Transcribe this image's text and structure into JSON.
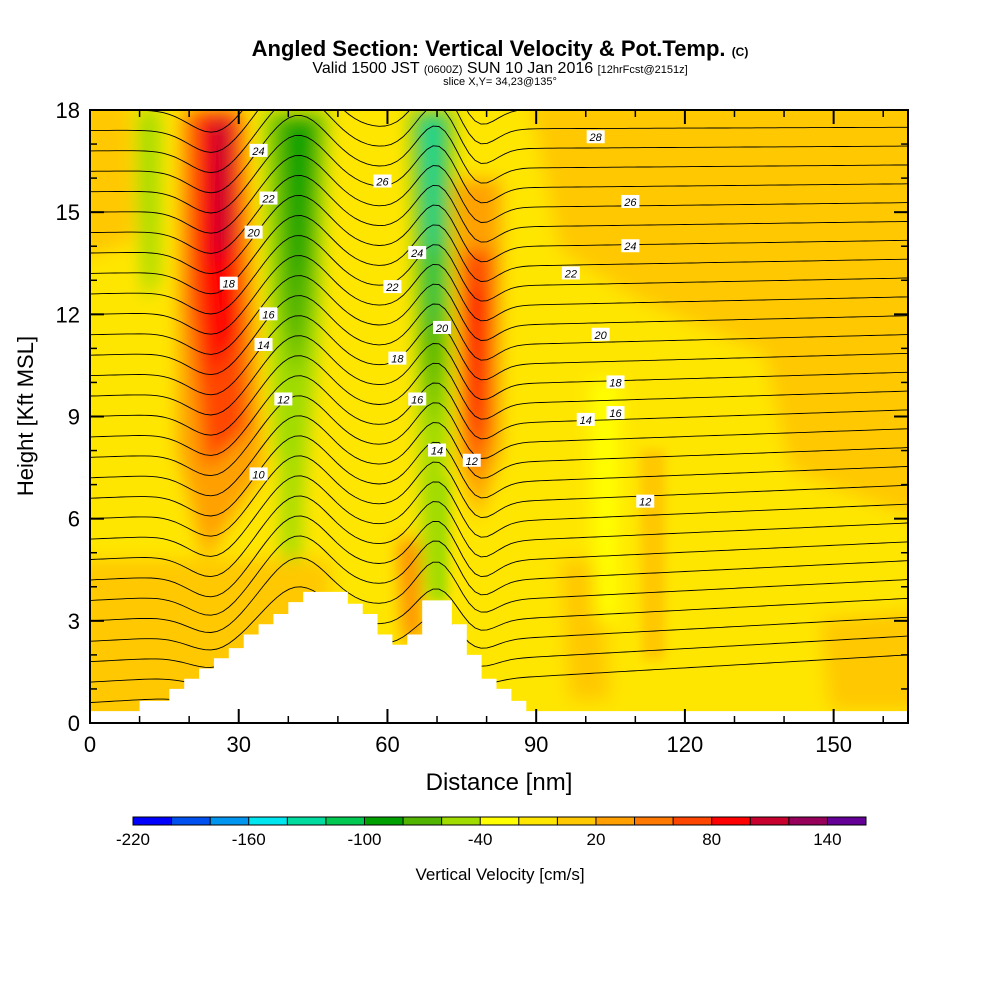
{
  "header": {
    "title": "Angled Section: Vertical Velocity & Pot.Temp.",
    "title_unit": "(C)",
    "subtitle_a": "Valid 1500 JST",
    "subtitle_b": "(0600Z)",
    "subtitle_c": "SUN 10 Jan 2016",
    "subtitle_d": "[12hrFcst@2151z]",
    "slice": "slice X,Y= 34,23@135°"
  },
  "chart_data": {
    "type": "heatmap",
    "xlabel": "Distance [nm]",
    "ylabel": "Height [Kft MSL]",
    "xlim": [
      0,
      165
    ],
    "ylim": [
      0,
      18
    ],
    "x_ticks": [
      0,
      30,
      60,
      90,
      120,
      150
    ],
    "y_ticks": [
      0,
      3,
      6,
      9,
      12,
      15,
      18
    ],
    "colorbar": {
      "label": "Vertical Velocity [cm/s]",
      "tick_labels": [
        "-220",
        "-160",
        "-100",
        "-40",
        "20",
        "80",
        "140"
      ],
      "tick_values": [
        -220,
        -160,
        -100,
        -40,
        20,
        80,
        140
      ],
      "range": [
        -220,
        160
      ],
      "step": 20,
      "colors": [
        "#0000ff",
        "#0050f0",
        "#0096f0",
        "#00e6f0",
        "#00dca0",
        "#00c850",
        "#00a000",
        "#50b400",
        "#a0dc00",
        "#ffff00",
        "#ffe600",
        "#ffc800",
        "#ffa000",
        "#ff7800",
        "#ff4600",
        "#ff0000",
        "#c8002d",
        "#96005a",
        "#640096"
      ]
    },
    "terrain": [
      [
        0,
        0.35
      ],
      [
        10,
        0.35
      ],
      [
        10,
        0.65
      ],
      [
        16,
        0.65
      ],
      [
        16,
        1.0
      ],
      [
        19,
        1.0
      ],
      [
        19,
        1.3
      ],
      [
        22,
        1.3
      ],
      [
        22,
        1.6
      ],
      [
        25,
        1.6
      ],
      [
        25,
        1.9
      ],
      [
        28,
        1.9
      ],
      [
        28,
        2.2
      ],
      [
        31,
        2.2
      ],
      [
        31,
        2.6
      ],
      [
        34,
        2.6
      ],
      [
        34,
        2.9
      ],
      [
        37,
        2.9
      ],
      [
        37,
        3.2
      ],
      [
        40,
        3.2
      ],
      [
        40,
        3.55
      ],
      [
        43,
        3.55
      ],
      [
        43,
        3.85
      ],
      [
        52,
        3.85
      ],
      [
        52,
        3.5
      ],
      [
        55,
        3.5
      ],
      [
        55,
        3.2
      ],
      [
        58,
        3.2
      ],
      [
        58,
        2.6
      ],
      [
        61,
        2.6
      ],
      [
        61,
        2.3
      ],
      [
        64,
        2.3
      ],
      [
        64,
        2.6
      ],
      [
        67,
        2.6
      ],
      [
        67,
        3.6
      ],
      [
        73,
        3.6
      ],
      [
        73,
        2.9
      ],
      [
        76,
        2.9
      ],
      [
        76,
        2.0
      ],
      [
        79,
        2.0
      ],
      [
        79,
        1.3
      ],
      [
        82,
        1.3
      ],
      [
        82,
        1.0
      ],
      [
        85,
        1.0
      ],
      [
        85,
        0.65
      ],
      [
        88,
        0.65
      ],
      [
        88,
        0.35
      ],
      [
        165,
        0.35
      ]
    ],
    "isotherm_labels": [
      {
        "text": "24",
        "x": 34,
        "y": 16.8
      },
      {
        "text": "22",
        "x": 36,
        "y": 15.4
      },
      {
        "text": "20",
        "x": 33,
        "y": 14.4
      },
      {
        "text": "18",
        "x": 28,
        "y": 12.9
      },
      {
        "text": "16",
        "x": 36,
        "y": 12.0
      },
      {
        "text": "14",
        "x": 35,
        "y": 11.1
      },
      {
        "text": "12",
        "x": 39,
        "y": 9.5
      },
      {
        "text": "10",
        "x": 34,
        "y": 7.3
      },
      {
        "text": "26",
        "x": 59,
        "y": 15.9
      },
      {
        "text": "24",
        "x": 66,
        "y": 13.8
      },
      {
        "text": "22",
        "x": 61,
        "y": 12.8
      },
      {
        "text": "18",
        "x": 62,
        "y": 10.7
      },
      {
        "text": "16",
        "x": 66,
        "y": 9.5
      },
      {
        "text": "20",
        "x": 71,
        "y": 11.6
      },
      {
        "text": "14",
        "x": 70,
        "y": 8.0
      },
      {
        "text": "12",
        "x": 77,
        "y": 7.7
      },
      {
        "text": "28",
        "x": 102,
        "y": 17.2
      },
      {
        "text": "26",
        "x": 109,
        "y": 15.3
      },
      {
        "text": "24",
        "x": 109,
        "y": 14.0
      },
      {
        "text": "22",
        "x": 97,
        "y": 13.2
      },
      {
        "text": "20",
        "x": 103,
        "y": 11.4
      },
      {
        "text": "18",
        "x": 106,
        "y": 10.0
      },
      {
        "text": "16",
        "x": 106,
        "y": 9.1
      },
      {
        "text": "14",
        "x": 100,
        "y": 8.9
      },
      {
        "text": "12",
        "x": 112,
        "y": 6.5
      }
    ]
  }
}
